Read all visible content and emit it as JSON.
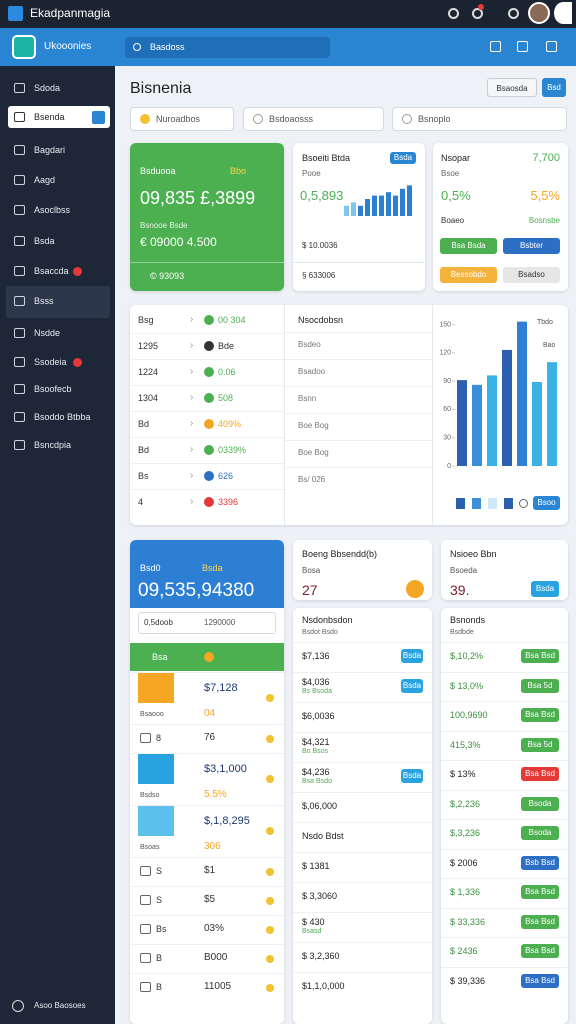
{
  "topbar": {
    "title": "Ekadpanmagia"
  },
  "header": {
    "brand": "Ukooonies",
    "search": "Basdoss"
  },
  "sidebar": {
    "items": [
      "Sdoda",
      "Bsenda",
      "Bagdari",
      "Aagd",
      "Asoclbss",
      "Bsda",
      "Bsaccda",
      "Bsss",
      "Nsdde",
      "Ssodeia",
      "Bsoofecb",
      "Bsoddo Btbba",
      "Bsncdpia"
    ],
    "footer": "Asoo Baosoes"
  },
  "page": {
    "title": "Bisnenia",
    "buttons": [
      "Bsaosda",
      "Bsd"
    ],
    "filters": [
      "Nuroadbos",
      "Bsdoaosss",
      "Bsnoplo"
    ]
  },
  "summary": {
    "green_card": {
      "title": "Bsduooa",
      "badge": "Bbo",
      "value": "09,835 £,3899",
      "sub": "Bsnooe Bsde",
      "sub_value": "€ 09000 4.500",
      "footer": "© 93093"
    },
    "revenue_card": {
      "title": "Bsoeiti Btda",
      "button": "Bsda",
      "label": "Pooe",
      "value": "0,5,893",
      "line": "$ 10.0036",
      "footer": "§ 633006",
      "chart": {
        "values": [
          3,
          4,
          3,
          5,
          6,
          6,
          7,
          6,
          8,
          9
        ],
        "ylim": [
          0,
          10
        ]
      }
    },
    "stats_card": {
      "title": "Nsopar",
      "title_value": "7,700",
      "label": "Bsoe",
      "value_a": "0,5%",
      "value_b": "5,5%",
      "row_label": "Boaeo",
      "row_value": "Bosnsbe",
      "buttons": [
        {
          "text": "Bsa Bsda",
          "color": "#4caf50"
        },
        {
          "text": "Bsbter",
          "color": "#2d6fc4"
        },
        {
          "text": "Bessobdo",
          "color": "#f4b33d"
        },
        {
          "text": "Bsadso",
          "color": "#e6e6e6"
        }
      ]
    }
  },
  "overview": {
    "rows": [
      {
        "label": "Bsg",
        "value": "00 304",
        "color": "#4caf50"
      },
      {
        "label": "1295",
        "value": "Bde",
        "color": "#333333"
      },
      {
        "label": "1224",
        "value": "0.06",
        "color": "#4caf50"
      },
      {
        "label": "1304",
        "value": "508",
        "color": "#4caf50"
      },
      {
        "label": "Bd",
        "value": "409%",
        "color": "#f5a623"
      },
      {
        "label": "Bd",
        "value": "0339%",
        "color": "#4caf50"
      },
      {
        "label": "Bs",
        "value": "626",
        "color": "#2d6fc4"
      },
      {
        "label": "4",
        "value": "3396",
        "color": "#e53935"
      }
    ],
    "list_title": "Nsocdobsn",
    "list": [
      "Bsdeo",
      "Bsadoo",
      "Bsnn",
      "Boe Bog",
      "Boe Bog",
      "Bs/ 026"
    ],
    "chart": {
      "values": [
        91,
        86,
        96,
        123,
        153,
        89,
        110
      ],
      "colors": [
        "#2d5fb0",
        "#3a8fd8",
        "#39b3e6",
        "#2d5fb0",
        "#2f7fd6",
        "#39b3e6",
        "#39b3e6"
      ],
      "ylim": [
        0,
        160
      ],
      "yticks": [
        0,
        30,
        60,
        90,
        120,
        150
      ],
      "labels": [
        "Tbdo",
        "Bao"
      ],
      "button": "Bsoo"
    }
  },
  "details": {
    "balance": {
      "title": "Bsd0",
      "badge": "Bsda",
      "value": "09,535,94380",
      "input": "0,5doob",
      "input_value": "1290000",
      "bar_label": "Bsa",
      "rows": [
        {
          "image": "#f5a623",
          "title": "$7,128",
          "sub": "Bsaooo",
          "value": "04"
        },
        {
          "title": "8",
          "value": "76"
        },
        {
          "image": "#29a3e0",
          "title": "$3,1,000",
          "sub": "Bsdso",
          "value": "5.5%"
        },
        {
          "image": "#5bc0eb",
          "title": "$,1,8,295",
          "sub": "Bsoas",
          "value": "306"
        },
        {
          "title": "S",
          "value": "$1"
        },
        {
          "title": "S",
          "value": "$5"
        },
        {
          "title": "Bs",
          "value": "03%"
        },
        {
          "title": "B",
          "value": "B000"
        },
        {
          "title": "B",
          "value": "11005"
        }
      ]
    },
    "activity": {
      "title": "Boeng Bbsendd(b)",
      "label": "Bosa",
      "value": "27",
      "list_title": "Nsdonbsdon",
      "list_sub": "Bsdot Bsdo",
      "rows": [
        {
          "text": "$7,136",
          "btn": "Bsda",
          "color": "#29a3e0"
        },
        {
          "text": "$4,036",
          "sub": "Bs Bsoda",
          "btn": "Bsda",
          "color": "#29a3e0"
        },
        {
          "text": "$6,0036"
        },
        {
          "text": "$4,321",
          "sub": "Bo Bsos"
        },
        {
          "text": "$4,236",
          "sub": "Bsa Bsdo",
          "btn": "Bsda",
          "color": "#29a3e0"
        },
        {
          "text": "$,06,000"
        },
        {
          "heading": "Nsdo Bdst"
        },
        {
          "text": "$ 1381"
        },
        {
          "text": "$ 3,3060"
        },
        {
          "text": "$ 430",
          "sub": "Bsasd"
        },
        {
          "text": "$ 3,2,360"
        },
        {
          "text": "$1,1,0,000"
        }
      ]
    },
    "status": {
      "title": "Nsioeo Bbn",
      "label": "Bsoeda",
      "value": "39.",
      "button": "Bsda",
      "list_title": "Bsnonds",
      "list_sub": "Bsdbde",
      "rows": [
        {
          "text": "$,10,2%",
          "btn": "Bsa Bsd",
          "color": "#4caf50"
        },
        {
          "text": "$ 13,0%",
          "btn": "Bsa 5d",
          "color": "#4caf50"
        },
        {
          "text": "100,9690",
          "btn": "Bsa Bsd",
          "color": "#4caf50"
        },
        {
          "text": "415,3%",
          "btn": "Bsa 5d",
          "color": "#4caf50"
        },
        {
          "text": "$ 13%",
          "btn": "Bsa Bsd",
          "color": "#e53935"
        },
        {
          "text": "$,2,236",
          "btn": "Bsoda",
          "color": "#4caf50"
        },
        {
          "text": "$,3,236",
          "btn": "Bsoda",
          "color": "#4caf50"
        },
        {
          "text": "$ 2006",
          "btn": "Bsb Bsd",
          "color": "#2d6fc4"
        },
        {
          "text": "$ 1,336",
          "btn": "Bsa Bsd",
          "color": "#4caf50"
        },
        {
          "text": "$ 33,336",
          "btn": "Bsa Bsd",
          "color": "#4caf50"
        },
        {
          "text": "$ 2436",
          "btn": "Bsa Bsd",
          "color": "#4caf50"
        },
        {
          "text": "$ 39,336",
          "btn": "Bsa Bsd",
          "color": "#2d6fc4"
        }
      ]
    }
  }
}
